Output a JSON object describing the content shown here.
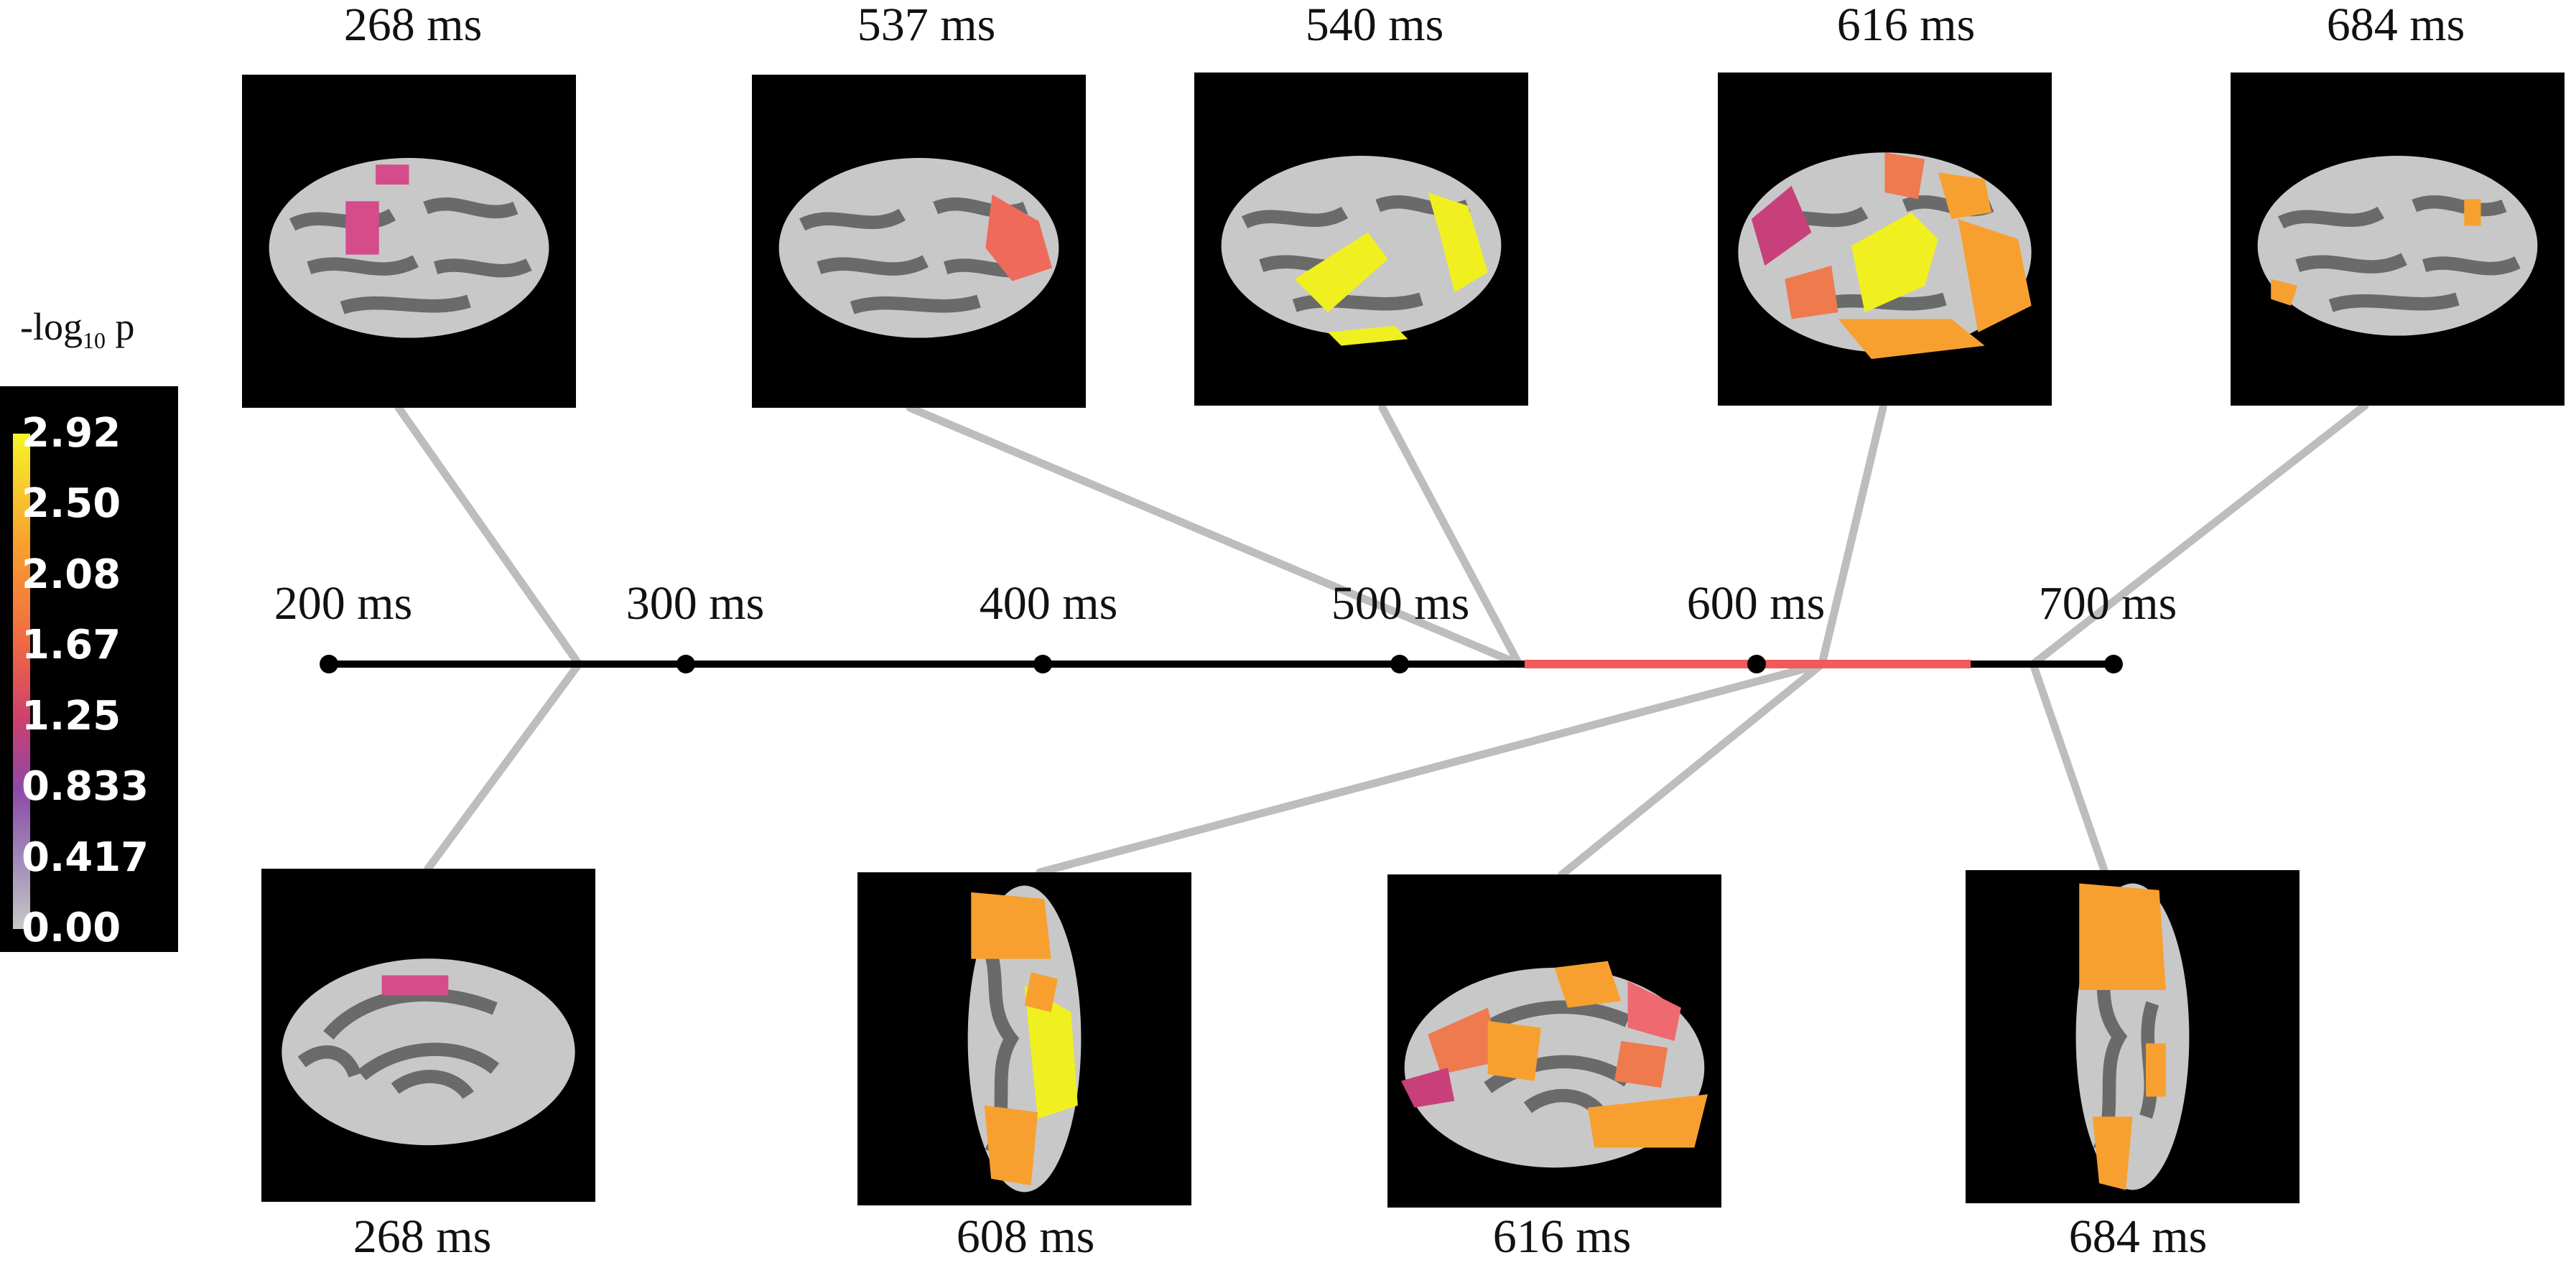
{
  "colorbar": {
    "title": "-log",
    "title_sub": "10",
    "title_suffix": " p",
    "ticks": [
      "2.92",
      "2.50",
      "2.08",
      "1.67",
      "1.25",
      "0.833",
      "0.417",
      "0.00"
    ],
    "gradient_colors": [
      "#f6f52a",
      "#f8a02e",
      "#f06a42",
      "#cc3f6f",
      "#8c4aa8",
      "#c8c8c8"
    ]
  },
  "timeline": {
    "unit": "ms",
    "tick_labels": [
      "200 ms",
      "300 ms",
      "400 ms",
      "500 ms",
      "600 ms",
      "700 ms"
    ],
    "range_ms": [
      200,
      700
    ],
    "significant_window_ms": [
      535,
      660
    ],
    "highlight_color": "#ef5a5a"
  },
  "top_panels": [
    {
      "time_label": "268 ms",
      "time_ms": 268,
      "view": "lateral"
    },
    {
      "time_label": "537 ms",
      "time_ms": 537,
      "view": "lateral"
    },
    {
      "time_label": "540 ms",
      "time_ms": 540,
      "view": "lateral"
    },
    {
      "time_label": "616 ms",
      "time_ms": 616,
      "view": "lateral"
    },
    {
      "time_label": "684 ms",
      "time_ms": 684,
      "view": "lateral"
    }
  ],
  "bottom_panels": [
    {
      "time_label": "268 ms",
      "time_ms": 268,
      "view": "medial"
    },
    {
      "time_label": "608 ms",
      "time_ms": 608,
      "view": "ventral"
    },
    {
      "time_label": "616 ms",
      "time_ms": 616,
      "view": "medial"
    },
    {
      "time_label": "684 ms",
      "time_ms": 684,
      "view": "ventral"
    }
  ]
}
